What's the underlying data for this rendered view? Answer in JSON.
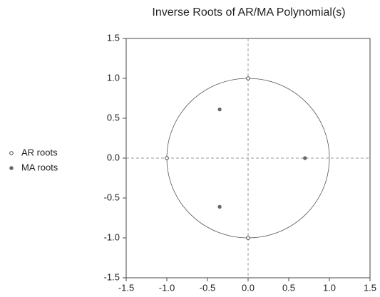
{
  "chart_data": {
    "type": "scatter",
    "title": "Inverse Roots of AR/MA Polynomial(s)",
    "series": [
      {
        "name": "AR roots",
        "color": "#333333",
        "marker": "hollow",
        "x": [
          0,
          -1,
          0
        ],
        "values": [
          1,
          0,
          -1
        ]
      },
      {
        "name": "MA roots",
        "color": "#666666",
        "marker": "filled",
        "x": [
          -0.35,
          -0.35,
          0.7
        ],
        "values": [
          0.61,
          -0.61,
          0
        ]
      }
    ],
    "xlim": [
      -1.5,
      1.5
    ],
    "xticks": [
      -1.5,
      {
        "value": -1,
        "label": "-1.0"
      },
      -0.5,
      {
        "value": 0,
        "label": "0.0"
      },
      0.5,
      {
        "value": 1,
        "label": "1.0"
      },
      1.5
    ],
    "ylim": [
      -1.5,
      1.5
    ],
    "yticks": [
      -1.5,
      {
        "value": -1,
        "label": "-1.0"
      },
      -0.5,
      {
        "value": 0,
        "label": "0.0"
      },
      0.5,
      {
        "value": 1,
        "label": "1.0"
      },
      1.5
    ],
    "unit_circle": true,
    "zero_lines": true,
    "legend": "left"
  }
}
